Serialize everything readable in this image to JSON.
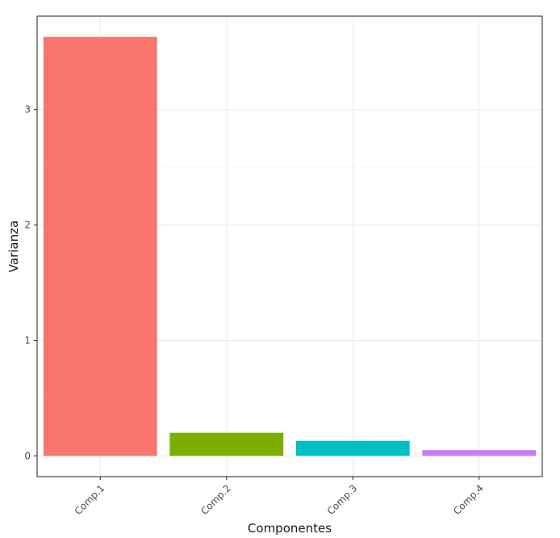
{
  "chart_data": {
    "type": "bar",
    "categories": [
      "Comp.1",
      "Comp.2",
      "Comp.3",
      "Comp.4"
    ],
    "values": [
      3.63,
      0.2,
      0.13,
      0.05
    ],
    "colors": [
      "#F8766D",
      "#7CAE00",
      "#00BFC4",
      "#C77CFF"
    ],
    "xlabel": "Componentes",
    "ylabel": "Varianza",
    "yticks": [
      0,
      1,
      2,
      3
    ],
    "ylim": [
      -0.18,
      3.81
    ],
    "grid": true,
    "legend": "none",
    "theme": "bw"
  }
}
